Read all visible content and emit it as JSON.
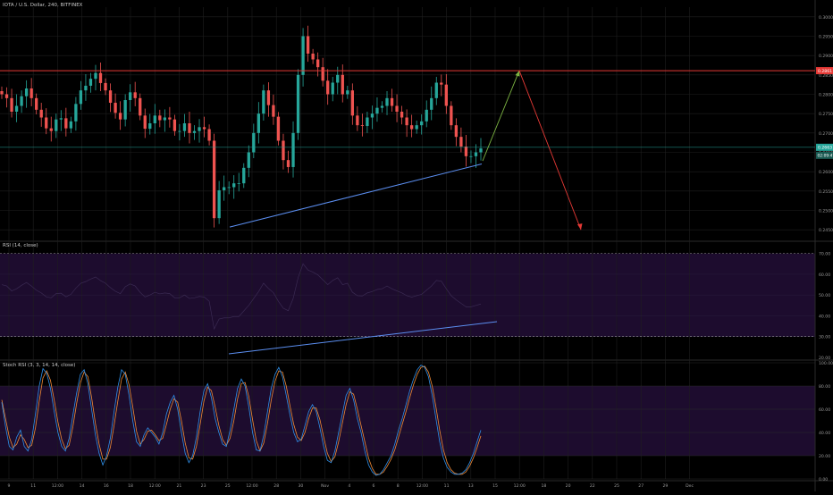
{
  "header": {
    "symbol_line": "IOTA / U.S. Dollar, 240, BITFINEX"
  },
  "colors": {
    "background": "#000000",
    "grid": "#1e1e1e",
    "up": "#26a69a",
    "down": "#ef5350",
    "resistance": "#e53935",
    "trendline": "#5b8ef0",
    "arrow_up": "#7cb342",
    "arrow_down": "#e53935",
    "band": "#1d0c2e",
    "rsi_line": "#3a2a52",
    "stoch_k": "#2f8fe8",
    "stoch_d": "#f08a36",
    "price_tag": "#26a69a"
  },
  "price_axis": {
    "labels": [
      "0.3000",
      "0.2950",
      "0.2900",
      "0.2850",
      "0.2800",
      "0.2750",
      "0.2700",
      "0.2650",
      "0.2600",
      "0.2550",
      "0.2500",
      "0.2450"
    ],
    "resistance_label": "0.2861",
    "current_label": "0.2663",
    "countdown_label": "02:09:47"
  },
  "time_axis": {
    "labels": [
      "9",
      "11",
      "12:00",
      "14",
      "16",
      "18",
      "12:00",
      "21",
      "23",
      "25",
      "12:00",
      "28",
      "30",
      "Nov",
      "4",
      "6",
      "8",
      "12:00",
      "11",
      "13",
      "15",
      "12:00",
      "18",
      "20",
      "22",
      "25",
      "27",
      "29",
      "Dec"
    ]
  },
  "rsi": {
    "title": "RSI (14, close)",
    "axis_labels": [
      "70.00",
      "60.00",
      "50.00",
      "40.00",
      "30.00",
      "20.00"
    ],
    "upper": 70,
    "lower": 30
  },
  "stoch": {
    "title": "Stoch RSI (3, 3, 14, 14, close)",
    "axis_labels": [
      "100.00",
      "80.00",
      "60.00",
      "40.00",
      "20.00",
      "0.00"
    ],
    "upper": 80,
    "lower": 20
  },
  "chart_data": {
    "type": "candlestick",
    "resistance": 0.2861,
    "current_price": 0.2663,
    "price_range": [
      0.2425,
      0.3025
    ],
    "candles_close": [
      0.28,
      0.279,
      0.2755,
      0.277,
      0.2795,
      0.2815,
      0.279,
      0.276,
      0.274,
      0.2712,
      0.2705,
      0.2735,
      0.2738,
      0.2712,
      0.273,
      0.2775,
      0.281,
      0.2822,
      0.284,
      0.2855,
      0.2829,
      0.281,
      0.2778,
      0.2752,
      0.2735,
      0.2785,
      0.2805,
      0.279,
      0.2745,
      0.2711,
      0.2725,
      0.2745,
      0.2733,
      0.274,
      0.2735,
      0.2705,
      0.2705,
      0.2725,
      0.27,
      0.2705,
      0.2715,
      0.271,
      0.268,
      0.248,
      0.2552,
      0.256,
      0.256,
      0.257,
      0.257,
      0.261,
      0.265,
      0.27,
      0.275,
      0.281,
      0.2772,
      0.2742,
      0.268,
      0.263,
      0.2612,
      0.27,
      0.285,
      0.295,
      0.2905,
      0.289,
      0.287,
      0.2835,
      0.28,
      0.283,
      0.285,
      0.28,
      0.281,
      0.2745,
      0.272,
      0.2718,
      0.274,
      0.275,
      0.2765,
      0.277,
      0.279,
      0.277,
      0.2755,
      0.274,
      0.272,
      0.271,
      0.272,
      0.273,
      0.276,
      0.279,
      0.283,
      0.2825,
      0.277,
      0.272,
      0.269,
      0.2665,
      0.264,
      0.264,
      0.265,
      0.266
    ],
    "projection": [
      {
        "t": 0,
        "price": 0.2628
      },
      {
        "t": 1,
        "price": 0.2861
      },
      {
        "t": 2,
        "price": 0.245
      }
    ],
    "support_line": [
      {
        "t": 0,
        "price": 0.2457
      },
      {
        "t": 1,
        "price": 0.262
      }
    ],
    "stoch_k": [
      66,
      45,
      28,
      25,
      36,
      42,
      28,
      24,
      34,
      56,
      80,
      95,
      91,
      78,
      58,
      40,
      28,
      24,
      35,
      55,
      74,
      90,
      94,
      82,
      60,
      38,
      22,
      12,
      20,
      35,
      58,
      79,
      94,
      90,
      72,
      50,
      32,
      28,
      38,
      44,
      40,
      36,
      30,
      40,
      56,
      66,
      72,
      60,
      40,
      22,
      14,
      20,
      36,
      58,
      76,
      82,
      70,
      52,
      40,
      30,
      28,
      42,
      60,
      78,
      86,
      80,
      62,
      40,
      25,
      24,
      38,
      58,
      78,
      90,
      96,
      88,
      72,
      55,
      40,
      32,
      34,
      46,
      58,
      64,
      58,
      44,
      28,
      16,
      14,
      24,
      40,
      56,
      72,
      78,
      68,
      52,
      40,
      24,
      12,
      6,
      3,
      4,
      8,
      14,
      20,
      30,
      42,
      52,
      64,
      76,
      86,
      94,
      98,
      96,
      88,
      72,
      52,
      32,
      18,
      10,
      6,
      4,
      4,
      5,
      8,
      14,
      22,
      32,
      42
    ],
    "stoch_d": [
      68,
      52,
      36,
      27,
      30,
      38,
      34,
      27,
      29,
      44,
      67,
      87,
      93,
      85,
      68,
      49,
      34,
      26,
      29,
      45,
      65,
      83,
      92,
      88,
      70,
      48,
      30,
      17,
      17,
      27,
      46,
      67,
      86,
      92,
      81,
      62,
      41,
      30,
      34,
      41,
      42,
      38,
      33,
      35,
      47,
      60,
      69,
      66,
      50,
      31,
      18,
      17,
      28,
      47,
      67,
      79,
      76,
      62,
      46,
      34,
      29,
      35,
      50,
      69,
      82,
      83,
      71,
      51,
      33,
      24,
      31,
      48,
      68,
      84,
      93,
      92,
      80,
      63,
      47,
      36,
      33,
      40,
      52,
      61,
      61,
      51,
      36,
      22,
      15,
      19,
      32,
      48,
      64,
      75,
      73,
      60,
      46,
      32,
      18,
      9,
      4,
      4,
      6,
      11,
      17,
      25,
      36,
      47,
      58,
      70,
      81,
      90,
      96,
      97,
      92,
      80,
      62,
      42,
      25,
      14,
      8,
      5,
      4,
      4,
      6,
      11,
      18,
      27,
      37
    ]
  }
}
